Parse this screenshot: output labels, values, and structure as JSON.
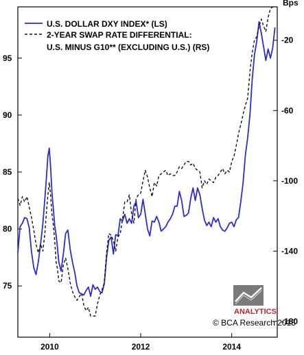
{
  "chart_data": {
    "type": "line",
    "x_range": [
      2009.3,
      2015.0
    ],
    "x_ticks": [
      {
        "value": 2010.0,
        "label": "2010"
      },
      {
        "value": 2012.0,
        "label": "2012"
      },
      {
        "value": 2014.0,
        "label": "2014"
      }
    ],
    "y_left": {
      "range": [
        70.5,
        99.5
      ],
      "ticks": [
        75,
        80,
        85,
        90,
        95
      ]
    },
    "y_right": {
      "label": "Bps",
      "range": [
        -189,
        -1
      ],
      "ticks": [
        -180,
        -140,
        -100,
        -60,
        -20
      ]
    },
    "series": [
      {
        "name": "U.S. DOLLAR DXY INDEX* (LS)",
        "axis": "left",
        "color": "#2b2bd4",
        "style": "solid",
        "x": [
          2009.3,
          2009.35,
          2009.4,
          2009.45,
          2009.5,
          2009.55,
          2009.6,
          2009.65,
          2009.7,
          2009.75,
          2009.8,
          2009.85,
          2009.9,
          2009.93,
          2009.96,
          2009.99,
          2010.02,
          2010.05,
          2010.08,
          2010.11,
          2010.14,
          2010.17,
          2010.2,
          2010.25,
          2010.3,
          2010.35,
          2010.4,
          2010.45,
          2010.5,
          2010.55,
          2010.6,
          2010.65,
          2010.7,
          2010.75,
          2010.8,
          2010.85,
          2010.9,
          2010.95,
          2011.0,
          2011.05,
          2011.1,
          2011.15,
          2011.2,
          2011.25,
          2011.3,
          2011.35,
          2011.4,
          2011.45,
          2011.5,
          2011.55,
          2011.6,
          2011.65,
          2011.7,
          2011.75,
          2011.8,
          2011.85,
          2011.9,
          2011.95,
          2012.0,
          2012.05,
          2012.1,
          2012.15,
          2012.2,
          2012.25,
          2012.3,
          2012.35,
          2012.4,
          2012.45,
          2012.5,
          2012.55,
          2012.6,
          2012.65,
          2012.7,
          2012.75,
          2012.8,
          2012.85,
          2012.9,
          2012.95,
          2013.0,
          2013.05,
          2013.1,
          2013.15,
          2013.2,
          2013.25,
          2013.3,
          2013.35,
          2013.4,
          2013.45,
          2013.5,
          2013.55,
          2013.6,
          2013.65,
          2013.7,
          2013.75,
          2013.8,
          2013.85,
          2013.9,
          2013.95,
          2014.0,
          2014.05,
          2014.1,
          2014.15,
          2014.2,
          2014.25,
          2014.3,
          2014.35,
          2014.4,
          2014.45,
          2014.5,
          2014.55,
          2014.6,
          2014.65,
          2014.7,
          2014.75,
          2014.8,
          2014.85,
          2014.9,
          2014.95
        ],
        "y": [
          77.9,
          80.2,
          80.5,
          81.0,
          80.9,
          80.1,
          78.0,
          76.6,
          76.0,
          77.1,
          78.7,
          80.5,
          83.0,
          84.6,
          86.4,
          87.1,
          85.5,
          83.2,
          81.8,
          80.3,
          79.5,
          78.4,
          77.1,
          76.3,
          77.8,
          79.6,
          79.9,
          78.2,
          77.1,
          76.2,
          75.0,
          74.4,
          74.3,
          74.2,
          74.6,
          74.9,
          74.1,
          75.1,
          74.7,
          74.9,
          74.5,
          74.4,
          75.2,
          77.5,
          79.0,
          79.3,
          77.8,
          79.5,
          79.4,
          80.9,
          80.7,
          81.3,
          80.5,
          80.9,
          80.5,
          82.0,
          82.4,
          81.0,
          81.3,
          82.6,
          81.3,
          80.0,
          79.4,
          80.7,
          80.6,
          81.1,
          80.6,
          79.8,
          80.0,
          80.2,
          80.6,
          80.9,
          81.3,
          82.0,
          82.0,
          83.3,
          82.5,
          81.1,
          81.2,
          81.4,
          82.7,
          83.6,
          82.5,
          83.6,
          83.0,
          81.8,
          80.8,
          80.3,
          80.6,
          80.2,
          81.0,
          80.6,
          80.9,
          80.2,
          79.9,
          79.8,
          80.1,
          80.5,
          80.6,
          80.2,
          80.8,
          81.0,
          82.4,
          84.1,
          86.5,
          88.0,
          90.0,
          93.1,
          95.3,
          96.5,
          98.2,
          97.2,
          96.0,
          94.8,
          95.8,
          95.0,
          95.9,
          97.7
        ]
      },
      {
        "name": "2-YEAR SWAP RATE DIFFERENTIAL: U.S. MINUS G10** (EXCLUDING U.S.) (RS)",
        "axis": "right",
        "color": "#111111",
        "style": "dashed",
        "x": [
          2009.3,
          2009.35,
          2009.4,
          2009.45,
          2009.5,
          2009.55,
          2009.6,
          2009.65,
          2009.7,
          2009.75,
          2009.8,
          2009.85,
          2009.9,
          2009.93,
          2009.96,
          2009.99,
          2010.02,
          2010.05,
          2010.08,
          2010.11,
          2010.14,
          2010.17,
          2010.2,
          2010.25,
          2010.3,
          2010.35,
          2010.4,
          2010.45,
          2010.5,
          2010.55,
          2010.6,
          2010.65,
          2010.7,
          2010.75,
          2010.8,
          2010.85,
          2010.9,
          2010.95,
          2011.0,
          2011.05,
          2011.1,
          2011.15,
          2011.2,
          2011.25,
          2011.3,
          2011.35,
          2011.4,
          2011.45,
          2011.5,
          2011.55,
          2011.6,
          2011.65,
          2011.7,
          2011.75,
          2011.8,
          2011.85,
          2011.9,
          2011.95,
          2012.0,
          2012.05,
          2012.1,
          2012.15,
          2012.2,
          2012.25,
          2012.3,
          2012.35,
          2012.4,
          2012.45,
          2012.5,
          2012.55,
          2012.6,
          2012.65,
          2012.7,
          2012.75,
          2012.8,
          2012.85,
          2012.9,
          2012.95,
          2013.0,
          2013.05,
          2013.1,
          2013.15,
          2013.2,
          2013.25,
          2013.3,
          2013.35,
          2013.4,
          2013.45,
          2013.5,
          2013.55,
          2013.6,
          2013.65,
          2013.7,
          2013.75,
          2013.8,
          2013.85,
          2013.9,
          2013.95,
          2014.0,
          2014.05,
          2014.1,
          2014.15,
          2014.2,
          2014.25,
          2014.3,
          2014.35,
          2014.4,
          2014.45,
          2014.5,
          2014.55,
          2014.6,
          2014.65,
          2014.7,
          2014.75,
          2014.8,
          2014.85,
          2014.9,
          2014.95
        ],
        "y": [
          -110,
          -114,
          -109,
          -112,
          -109,
          -115,
          -121,
          -128,
          -136,
          -141,
          -136,
          -140,
          -128,
          -117,
          -108,
          -101,
          -108,
          -119,
          -125,
          -134,
          -146,
          -150,
          -157,
          -158,
          -148,
          -144,
          -150,
          -158,
          -163,
          -166,
          -168,
          -166,
          -164,
          -171,
          -174,
          -172,
          -177,
          -177,
          -177,
          -170,
          -165,
          -162,
          -158,
          -141,
          -130,
          -131,
          -134,
          -140,
          -132,
          -130,
          -122,
          -112,
          -112,
          -108,
          -119,
          -124,
          -110,
          -108,
          -107,
          -100,
          -94,
          -98,
          -104,
          -109,
          -101,
          -103,
          -97,
          -96,
          -95,
          -94,
          -97,
          -96,
          -97,
          -97,
          -95,
          -92,
          -93,
          -91,
          -89,
          -89,
          -91,
          -90,
          -93,
          -94,
          -95,
          -104,
          -100,
          -102,
          -99,
          -100,
          -101,
          -98,
          -97,
          -95,
          -93,
          -96,
          -94,
          -95,
          -89,
          -86,
          -80,
          -73,
          -68,
          -62,
          -57,
          -53,
          -38,
          -27,
          -20,
          -18,
          -12,
          -8,
          -12,
          -15,
          -7,
          -2,
          -1,
          3
        ]
      }
    ]
  },
  "legend": [
    {
      "name": "U.S. DOLLAR DXY INDEX* (LS)"
    },
    {
      "line1": "2-YEAR SWAP RATE DIFFERENTIAL:",
      "line2": "U.S. MINUS G10** (EXCLUDING U.S.) (RS)"
    }
  ],
  "logo": {
    "text": "ANALYTICS",
    "color": "#b0282e"
  },
  "credit": "© BCA Research 2015"
}
